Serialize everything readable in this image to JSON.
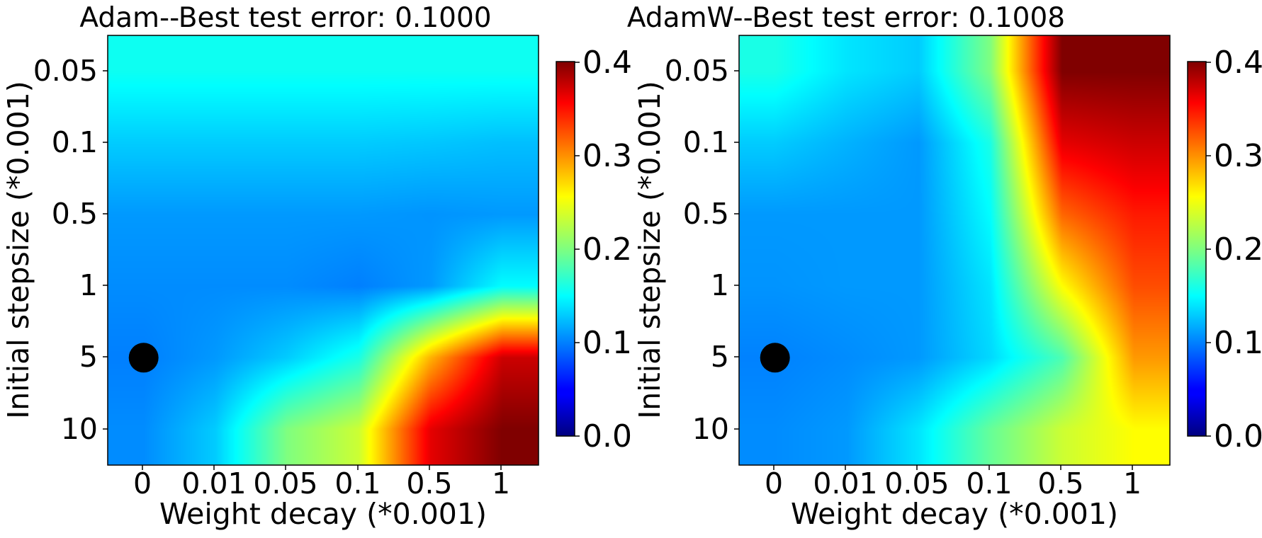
{
  "figure": {
    "colormap": "jet",
    "marker_color": "#000000"
  },
  "chart_data": [
    {
      "type": "heatmap",
      "title": "Adam--Best test error: 0.1000",
      "xlabel": "Weight decay (*0.001)",
      "ylabel": "Initial stepsize (*0.001)",
      "x_categories": [
        "0",
        "0.01",
        "0.05",
        "0.1",
        "0.5",
        "1"
      ],
      "y_categories": [
        "0.05",
        "0.1",
        "0.5",
        "1",
        "5",
        "10"
      ],
      "z": [
        [
          0.155,
          0.155,
          0.155,
          0.155,
          0.155,
          0.155
        ],
        [
          0.13,
          0.13,
          0.13,
          0.13,
          0.128,
          0.125
        ],
        [
          0.11,
          0.11,
          0.11,
          0.11,
          0.108,
          0.11
        ],
        [
          0.105,
          0.105,
          0.105,
          0.1,
          0.11,
          0.15
        ],
        [
          0.1,
          0.11,
          0.13,
          0.16,
          0.28,
          0.37
        ],
        [
          0.105,
          0.13,
          0.2,
          0.23,
          0.36,
          0.4
        ]
      ],
      "colorbar": {
        "range": [
          0.0,
          0.4
        ],
        "ticks": [
          "0.0",
          "0.1",
          "0.2",
          "0.3",
          "0.4"
        ]
      },
      "best_marker": {
        "x": "0",
        "y": "5"
      }
    },
    {
      "type": "heatmap",
      "title": "AdamW--Best test error: 0.1008",
      "xlabel": "Weight decay (*0.001)",
      "ylabel": "Initial stepsize (*0.001)",
      "x_categories": [
        "0",
        "0.01",
        "0.05",
        "0.1",
        "0.5",
        "1"
      ],
      "y_categories": [
        "0.05",
        "0.1",
        "0.5",
        "1",
        "5",
        "10"
      ],
      "z": [
        [
          0.16,
          0.14,
          0.13,
          0.2,
          0.4,
          0.4
        ],
        [
          0.13,
          0.12,
          0.11,
          0.16,
          0.36,
          0.37
        ],
        [
          0.11,
          0.11,
          0.11,
          0.15,
          0.31,
          0.34
        ],
        [
          0.108,
          0.11,
          0.11,
          0.14,
          0.25,
          0.32
        ],
        [
          0.101,
          0.105,
          0.11,
          0.135,
          0.18,
          0.29
        ],
        [
          0.105,
          0.11,
          0.14,
          0.19,
          0.23,
          0.25
        ]
      ],
      "colorbar": {
        "range": [
          0.0,
          0.4
        ],
        "ticks": [
          "0.0",
          "0.1",
          "0.2",
          "0.3",
          "0.4"
        ]
      },
      "best_marker": {
        "x": "0",
        "y": "5"
      }
    }
  ]
}
